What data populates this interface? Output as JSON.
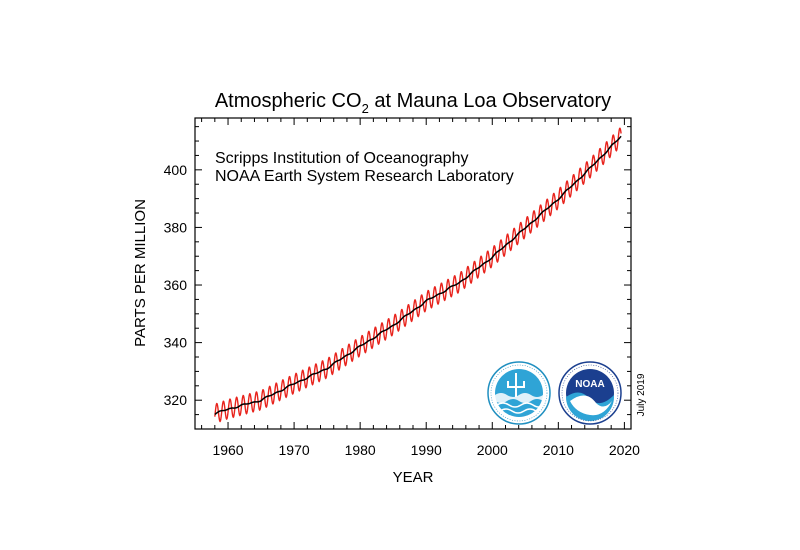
{
  "chart_data": {
    "type": "line",
    "title_main": "Atmospheric CO",
    "title_sub": "2",
    "title_rest": " at Mauna Loa Observatory",
    "xlabel": "YEAR",
    "ylabel": "PARTS PER MILLION",
    "xlim": [
      1955,
      2021
    ],
    "ylim": [
      310,
      418
    ],
    "xticks": [
      1960,
      1970,
      1980,
      1990,
      2000,
      2010,
      2020
    ],
    "yticks": [
      320,
      340,
      360,
      380,
      400
    ],
    "annotations": [
      "Scripps Institution of Oceanography",
      "NOAA Earth System Research Laboratory"
    ],
    "date_label": "July 2019",
    "seasonal_amplitude_ppm": 3.3,
    "series": [
      {
        "color": "#e8231c",
        "style": "monthly mean (seasonal cycle)"
      },
      {
        "color": "#000000",
        "style": "seasonally adjusted trend",
        "x": [
          1958,
          1960,
          1965,
          1970,
          1975,
          1980,
          1985,
          1990,
          1995,
          2000,
          2005,
          2010,
          2015,
          2019.5
        ],
        "values": [
          315.3,
          316.9,
          320.0,
          325.7,
          331.1,
          338.7,
          346.0,
          354.4,
          360.8,
          369.7,
          379.8,
          389.9,
          401.0,
          411.6
        ]
      }
    ]
  },
  "logos": [
    {
      "icon": "scripps-logo-icon"
    },
    {
      "icon": "noaa-logo-icon",
      "text": "NOAA"
    }
  ]
}
